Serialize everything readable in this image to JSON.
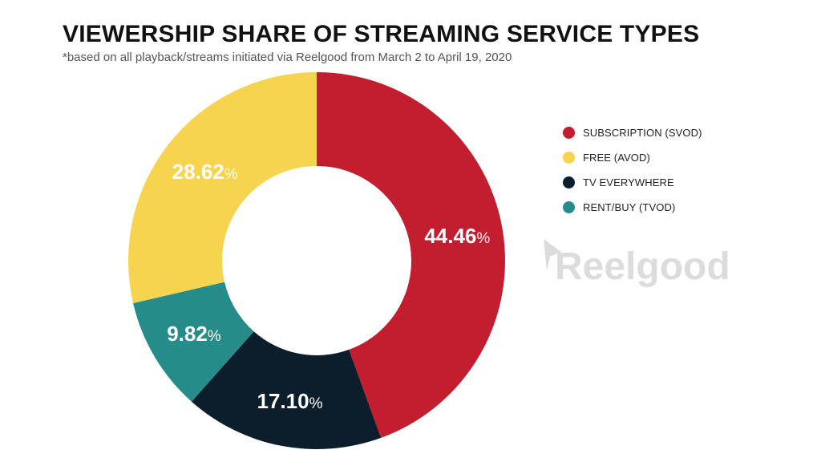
{
  "chart_data": {
    "type": "pie",
    "title": "VIEWERSHIP SHARE OF STREAMING SERVICE TYPES",
    "subtitle": "*based on all playback/streams initiated via Reelgood from March 2 to April 19, 2020",
    "value_suffix": "%",
    "series": [
      {
        "name": "SUBSCRIPTION (SVOD)",
        "value": 44.46,
        "label": "44.46",
        "color": "#c21e2f"
      },
      {
        "name": "FREE (AVOD)",
        "value": 28.62,
        "label": "28.62",
        "color": "#f6d44f"
      },
      {
        "name": "TV EVERYWHERE",
        "value": 17.1,
        "label": "17.10",
        "color": "#0c1d2c"
      },
      {
        "name": "RENT/BUY (TVOD)",
        "value": 9.82,
        "label": "9.82",
        "color": "#268c8a"
      }
    ],
    "slice_order": [
      "SUBSCRIPTION (SVOD)",
      "TV EVERYWHERE",
      "RENT/BUY (TVOD)",
      "FREE (AVOD)"
    ],
    "legend_position": "right"
  },
  "watermark": {
    "text": "Reelgood",
    "color": "#dcdcdc"
  }
}
